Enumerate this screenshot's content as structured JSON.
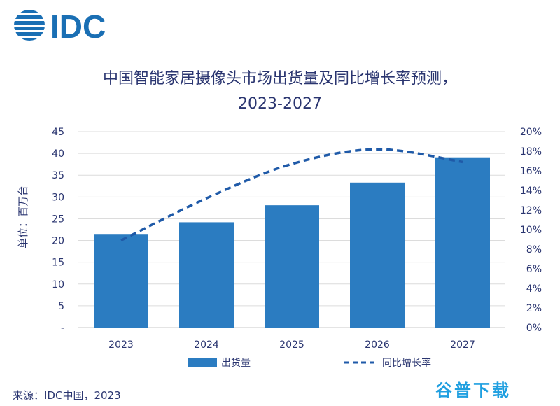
{
  "logo": {
    "text": "IDC",
    "color": "#1a6fb4"
  },
  "title": {
    "line1": "中国智能家居摄像头市场出货量及同比增长率预测，",
    "line2": "2023-2027"
  },
  "source": "来源：IDC中国，2023",
  "watermark": "谷普下载",
  "chart_data": {
    "type": "bar",
    "categories": [
      "2023",
      "2024",
      "2025",
      "2026",
      "2027"
    ],
    "series": [
      {
        "name": "出货量",
        "kind": "bar",
        "axis": "left",
        "color": "#2b7cc1",
        "values": [
          21.5,
          24.2,
          28.1,
          33.3,
          39.1
        ]
      },
      {
        "name": "同比增长率",
        "kind": "line",
        "style": "dashed",
        "axis": "right",
        "color": "#1f5aa8",
        "values": [
          8.9,
          13.2,
          16.7,
          18.2,
          16.9
        ]
      }
    ],
    "ylabel": "单位：百万台",
    "ylim": [
      0,
      45
    ],
    "yticks": [
      {
        "value": 0,
        "label": "-"
      },
      {
        "value": 5,
        "label": "5"
      },
      {
        "value": 10,
        "label": "10"
      },
      {
        "value": 15,
        "label": "15"
      },
      {
        "value": 20,
        "label": "20"
      },
      {
        "value": 25,
        "label": "25"
      },
      {
        "value": 30,
        "label": "30"
      },
      {
        "value": 35,
        "label": "35"
      },
      {
        "value": 40,
        "label": "40"
      },
      {
        "value": 45,
        "label": "45"
      }
    ],
    "y2lim": [
      0,
      20
    ],
    "y2ticks": [
      "0%",
      "2%",
      "4%",
      "6%",
      "8%",
      "10%",
      "12%",
      "14%",
      "16%",
      "18%",
      "20%"
    ],
    "grid": true,
    "legend_position": "bottom"
  }
}
